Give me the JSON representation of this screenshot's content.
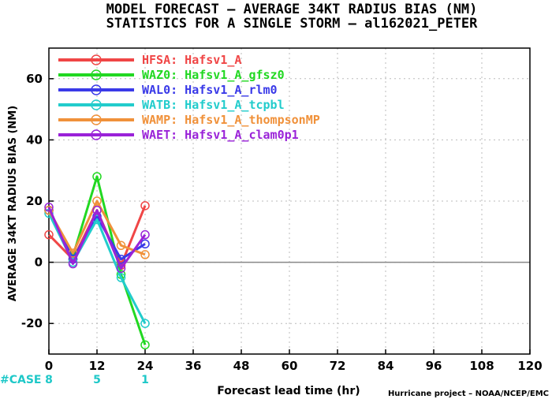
{
  "title_line1": "MODEL FORECAST – AVERAGE 34KT RADIUS BIAS (NM)",
  "title_line2": "STATISTICS FOR A SINGLE STORM – al162021_PETER",
  "credit": "Hurricane project – NOAA/NCEP/EMC",
  "case_label": "#CASE",
  "colors": {
    "zero_line": "#888888",
    "case": "#1ec8c8",
    "grid": "#bbbbbb"
  },
  "chart_data": {
    "type": "line",
    "xlabel": "Forecast lead time (hr)",
    "ylabel": "AVERAGE 34KT RADIUS BIAS (NM)",
    "xlim": [
      0,
      120
    ],
    "ylim": [
      -30,
      70
    ],
    "xticks": [
      0,
      12,
      24,
      36,
      48,
      60,
      72,
      84,
      96,
      108,
      120
    ],
    "yticks": [
      -20,
      0,
      20,
      40,
      60
    ],
    "grid": true,
    "legend_position": "top-left",
    "cases": [
      {
        "x": 0,
        "count": "8"
      },
      {
        "x": 12,
        "count": "5"
      },
      {
        "x": 24,
        "count": "1"
      }
    ],
    "x": [
      0,
      6,
      12,
      18,
      24
    ],
    "series": [
      {
        "name": "HFSA: Hafsv1_A",
        "color": "#f04646",
        "values": [
          9,
          1,
          17,
          -1,
          18.5
        ]
      },
      {
        "name": "WAZ0: Hafsv1_A_gfsz0",
        "color": "#22d822",
        "values": [
          17,
          2,
          28,
          -4,
          -27
        ]
      },
      {
        "name": "WAL0: Hafsv1_A_rlm0",
        "color": "#3a3ae8",
        "values": [
          17,
          1,
          15,
          1,
          6
        ]
      },
      {
        "name": "WATB: Hafsv1_A_tcpbl",
        "color": "#22cccc",
        "values": [
          16,
          0,
          14,
          -5,
          -20
        ]
      },
      {
        "name": "WAMP: Hafsv1_A_thompsonMP",
        "color": "#f0913a",
        "values": [
          17,
          3,
          20,
          5.5,
          2.5
        ]
      },
      {
        "name": "WAET: Hafsv1_A_clam0p1",
        "color": "#9a22d8",
        "values": [
          18,
          -0.5,
          17,
          -2,
          9
        ]
      }
    ]
  }
}
